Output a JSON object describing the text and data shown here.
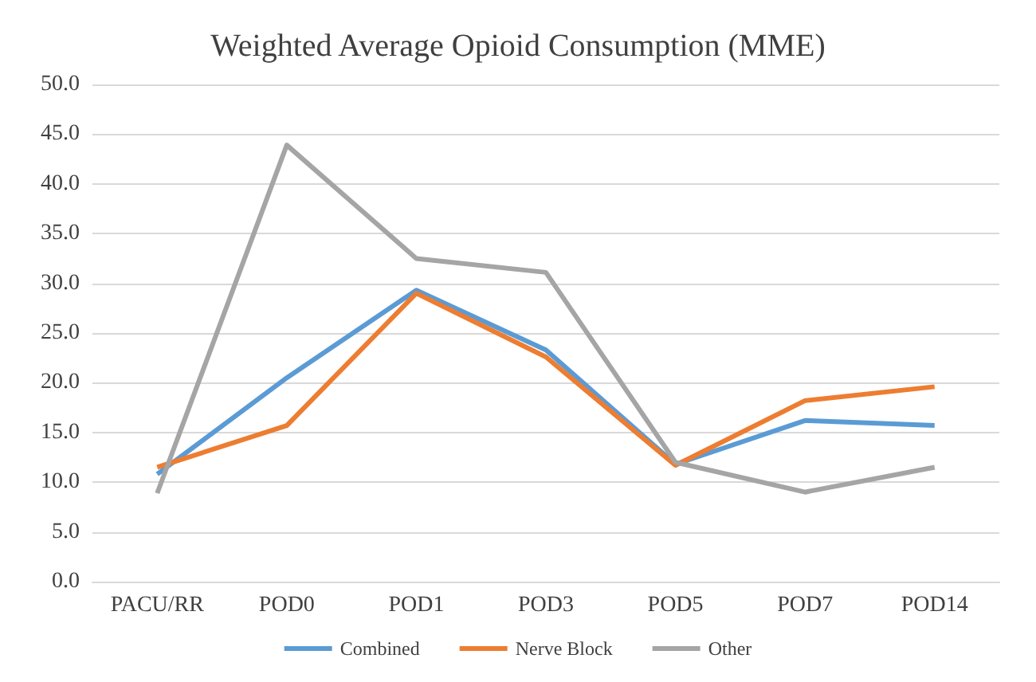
{
  "chart_data": {
    "type": "line",
    "title": "Weighted Average Opioid Consumption (MME)",
    "categories": [
      "PACU/RR",
      "POD0",
      "POD1",
      "POD3",
      "POD5",
      "POD7",
      "POD14"
    ],
    "series": [
      {
        "name": "Combined",
        "color": "#5b9bd5",
        "values": [
          10.8,
          20.5,
          29.3,
          23.3,
          11.8,
          16.2,
          15.7
        ]
      },
      {
        "name": "Nerve Block",
        "color": "#ed7d31",
        "values": [
          11.5,
          15.7,
          29.0,
          22.6,
          11.7,
          18.2,
          19.6
        ]
      },
      {
        "name": "Other",
        "color": "#a5a5a5",
        "values": [
          8.9,
          43.9,
          32.5,
          31.1,
          12.0,
          9.0,
          11.5
        ]
      }
    ],
    "ylim": [
      0,
      50
    ],
    "yticks": [
      {
        "value": 0,
        "label": "0.0"
      },
      {
        "value": 5,
        "label": "5.0"
      },
      {
        "value": 10,
        "label": "10.0"
      },
      {
        "value": 15,
        "label": "15.0"
      },
      {
        "value": 20,
        "label": "20.0"
      },
      {
        "value": 25,
        "label": "25.0"
      },
      {
        "value": 30,
        "label": "30.0"
      },
      {
        "value": 35,
        "label": "35.0"
      },
      {
        "value": 40,
        "label": "40.0"
      },
      {
        "value": 45,
        "label": "45.0"
      },
      {
        "value": 50,
        "label": "50.0"
      }
    ],
    "grid": "y",
    "legend": "bottom",
    "marker": "none"
  }
}
